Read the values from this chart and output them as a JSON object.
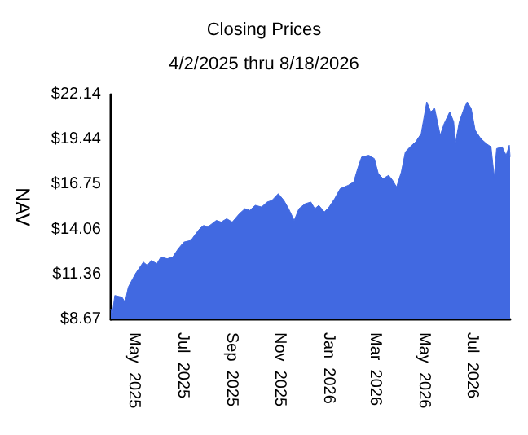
{
  "chart_data": {
    "type": "area",
    "title": "Closing Prices",
    "subtitle": "4/2/2025 thru 8/18/2026",
    "ylabel": "NAV",
    "xlim": [
      "2025-04-02",
      "2026-08-18"
    ],
    "xticks": [
      {
        "value": "2025-05-01",
        "label": "May  2025"
      },
      {
        "value": "2025-07-01",
        "label": "Jul  2025"
      },
      {
        "value": "2025-09-01",
        "label": "Sep  2025"
      },
      {
        "value": "2025-11-01",
        "label": "Nov  2025"
      },
      {
        "value": "2026-01-01",
        "label": "Jan  2026"
      },
      {
        "value": "2026-03-01",
        "label": "Mar  2026"
      },
      {
        "value": "2026-05-01",
        "label": "May  2026"
      },
      {
        "value": "2026-07-01",
        "label": "Jul  2026"
      }
    ],
    "ylim": [
      8.67,
      22.14
    ],
    "yticks": [
      {
        "value": 8.67,
        "label": "$8.67"
      },
      {
        "value": 11.36,
        "label": "$11.36"
      },
      {
        "value": 14.06,
        "label": "$14.06"
      },
      {
        "value": 16.75,
        "label": "$16.75"
      },
      {
        "value": 19.44,
        "label": "$19.44"
      },
      {
        "value": 22.14,
        "label": "$22.14"
      }
    ],
    "grid": false,
    "marker": "none",
    "series": [
      {
        "color": "#4169e1",
        "x": [
          "2025-04-02",
          "2025-04-04",
          "2025-04-07",
          "2025-04-16",
          "2025-04-20",
          "2025-04-24",
          "2025-05-03",
          "2025-05-13",
          "2025-05-18",
          "2025-05-23",
          "2025-05-30",
          "2025-06-04",
          "2025-06-12",
          "2025-06-19",
          "2025-06-26",
          "2025-07-03",
          "2025-07-12",
          "2025-07-18",
          "2025-07-23",
          "2025-07-28",
          "2025-08-02",
          "2025-08-13",
          "2025-08-19",
          "2025-08-26",
          "2025-09-02",
          "2025-09-11",
          "2025-09-18",
          "2025-09-24",
          "2025-10-01",
          "2025-10-09",
          "2025-10-16",
          "2025-10-22",
          "2025-10-30",
          "2025-11-06",
          "2025-11-12",
          "2025-11-19",
          "2025-11-25",
          "2025-12-03",
          "2025-12-10",
          "2025-12-15",
          "2025-12-20",
          "2025-12-27",
          "2026-01-02",
          "2026-01-09",
          "2026-01-16",
          "2026-01-26",
          "2026-02-02",
          "2026-02-07",
          "2026-02-12",
          "2026-02-21",
          "2026-02-28",
          "2026-03-05",
          "2026-03-11",
          "2026-03-18",
          "2026-03-23",
          "2026-03-28",
          "2026-04-03",
          "2026-04-08",
          "2026-04-14",
          "2026-04-21",
          "2026-04-28",
          "2026-05-05",
          "2026-05-10",
          "2026-05-15",
          "2026-05-22",
          "2026-05-27",
          "2026-06-03",
          "2026-06-08",
          "2026-06-10",
          "2026-06-15",
          "2026-06-21",
          "2026-06-25",
          "2026-06-30",
          "2026-07-05",
          "2026-07-12",
          "2026-07-19",
          "2026-07-25",
          "2026-07-29",
          "2026-08-01",
          "2026-08-08",
          "2026-08-13",
          "2026-08-17",
          "2026-08-18"
        ],
        "values": [
          9.3,
          9.0,
          10.1,
          10.0,
          9.7,
          10.6,
          11.4,
          12.1,
          11.9,
          12.2,
          12.0,
          12.4,
          12.3,
          12.4,
          12.9,
          13.3,
          13.4,
          13.8,
          14.1,
          14.3,
          14.2,
          14.6,
          14.5,
          14.7,
          14.5,
          15.0,
          15.3,
          15.2,
          15.5,
          15.4,
          15.7,
          15.8,
          16.2,
          15.8,
          15.3,
          14.6,
          15.3,
          15.6,
          15.7,
          15.3,
          15.5,
          15.1,
          15.4,
          15.9,
          16.5,
          16.7,
          16.9,
          17.7,
          18.4,
          18.5,
          18.3,
          17.4,
          17.1,
          17.3,
          17.0,
          16.6,
          17.5,
          18.7,
          19.0,
          19.3,
          19.8,
          21.7,
          21.1,
          21.3,
          19.7,
          20.4,
          21.1,
          20.5,
          19.2,
          20.5,
          21.3,
          21.7,
          21.3,
          20.0,
          19.5,
          19.2,
          19.0,
          17.2,
          18.9,
          19.0,
          18.5,
          19.1,
          18.4
        ]
      }
    ]
  }
}
